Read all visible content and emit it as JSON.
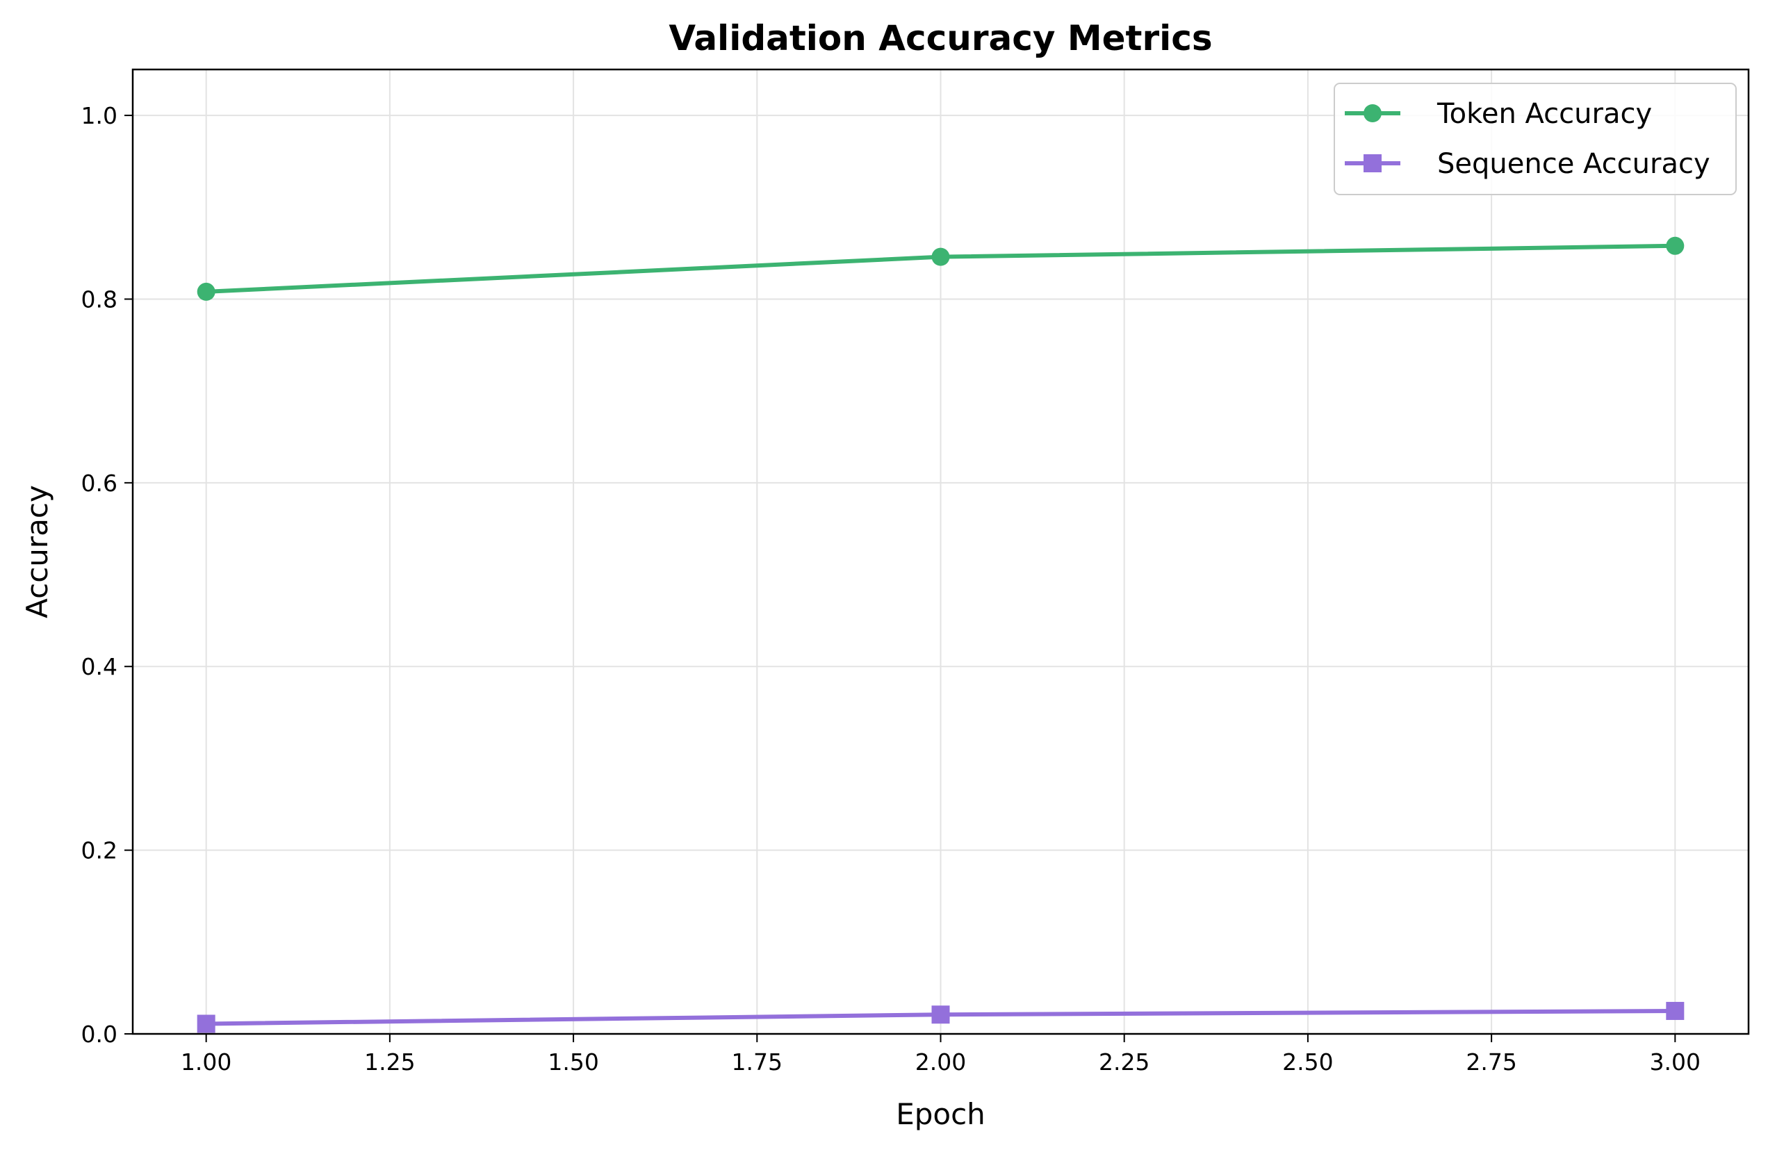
{
  "chart_data": {
    "type": "line",
    "title": "Validation Accuracy Metrics",
    "xlabel": "Epoch",
    "ylabel": "Accuracy",
    "xlim": [
      0.9,
      3.1
    ],
    "ylim": [
      0,
      1.05
    ],
    "x_ticks": [
      1.0,
      1.25,
      1.5,
      1.75,
      2.0,
      2.25,
      2.5,
      2.75,
      3.0
    ],
    "x_tick_labels": [
      "1.00",
      "1.25",
      "1.50",
      "1.75",
      "2.00",
      "2.25",
      "2.50",
      "2.75",
      "3.00"
    ],
    "y_ticks": [
      0.0,
      0.2,
      0.4,
      0.6,
      0.8,
      1.0
    ],
    "y_tick_labels": [
      "0.0",
      "0.2",
      "0.4",
      "0.6",
      "0.8",
      "1.0"
    ],
    "grid": true,
    "legend_position": "top-right",
    "x": [
      1,
      2,
      3
    ],
    "series": [
      {
        "name": "Token Accuracy",
        "values": [
          0.808,
          0.846,
          0.858
        ],
        "color": "#3cb371",
        "marker": "circle"
      },
      {
        "name": "Sequence Accuracy",
        "values": [
          0.011,
          0.021,
          0.025
        ],
        "color": "#9370db",
        "marker": "square"
      }
    ]
  }
}
